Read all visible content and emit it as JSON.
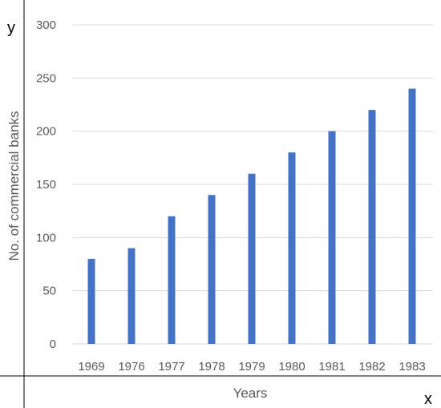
{
  "chart_data": {
    "type": "bar",
    "categories": [
      "1969",
      "1976",
      "1977",
      "1978",
      "1979",
      "1980",
      "1981",
      "1982",
      "1983"
    ],
    "series": [
      {
        "values": [
          80,
          90,
          120,
          140,
          160,
          180,
          200,
          220,
          240
        ],
        "color": "#4472c4"
      }
    ],
    "xlabel": "Years",
    "ylabel": "No. of commercial banks",
    "ylim": [
      0,
      300
    ],
    "yticks": [
      "0",
      "50",
      "100",
      "150",
      "200",
      "250",
      "300"
    ],
    "grid": true,
    "legend": "none"
  },
  "corner_labels": {
    "y": "y",
    "x": "x"
  },
  "colors": {
    "bar": "#4472c4",
    "grid": "#d9d9d9",
    "axis_lines": "#000000",
    "text": "#595959"
  }
}
